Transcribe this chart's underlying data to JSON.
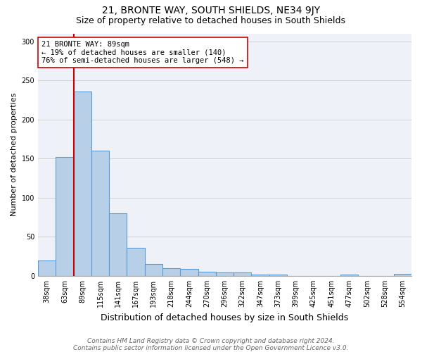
{
  "title1": "21, BRONTE WAY, SOUTH SHIELDS, NE34 9JY",
  "title2": "Size of property relative to detached houses in South Shields",
  "xlabel": "Distribution of detached houses by size in South Shields",
  "ylabel": "Number of detached properties",
  "categories": [
    "38sqm",
    "63sqm",
    "89sqm",
    "115sqm",
    "141sqm",
    "167sqm",
    "193sqm",
    "218sqm",
    "244sqm",
    "270sqm",
    "296sqm",
    "322sqm",
    "347sqm",
    "373sqm",
    "399sqm",
    "425sqm",
    "451sqm",
    "477sqm",
    "502sqm",
    "528sqm",
    "554sqm"
  ],
  "values": [
    20,
    152,
    236,
    160,
    80,
    36,
    15,
    10,
    9,
    5,
    4,
    4,
    2,
    2,
    0,
    0,
    0,
    2,
    0,
    0,
    3
  ],
  "bar_color": "#b8cfe8",
  "bar_edge_color": "#5b9bd5",
  "bar_edge_width": 0.8,
  "vline_x": 1.5,
  "vline_color": "#cc0000",
  "vline_lw": 1.5,
  "annotation_text": "21 BRONTE WAY: 89sqm\n← 19% of detached houses are smaller (140)\n76% of semi-detached houses are larger (548) →",
  "annotation_box_color": "#ffffff",
  "annotation_box_edge_color": "#cc0000",
  "ylim": [
    0,
    310
  ],
  "yticks": [
    0,
    50,
    100,
    150,
    200,
    250,
    300
  ],
  "grid_color": "#d0d0d0",
  "background_color": "#eef2f8",
  "footer1": "Contains HM Land Registry data © Crown copyright and database right 2024.",
  "footer2": "Contains public sector information licensed under the Open Government Licence v3.0.",
  "title1_fontsize": 10,
  "title2_fontsize": 9,
  "xlabel_fontsize": 9,
  "ylabel_fontsize": 8,
  "tick_fontsize": 7,
  "footer_fontsize": 6.5,
  "annotation_fontsize": 7.5
}
